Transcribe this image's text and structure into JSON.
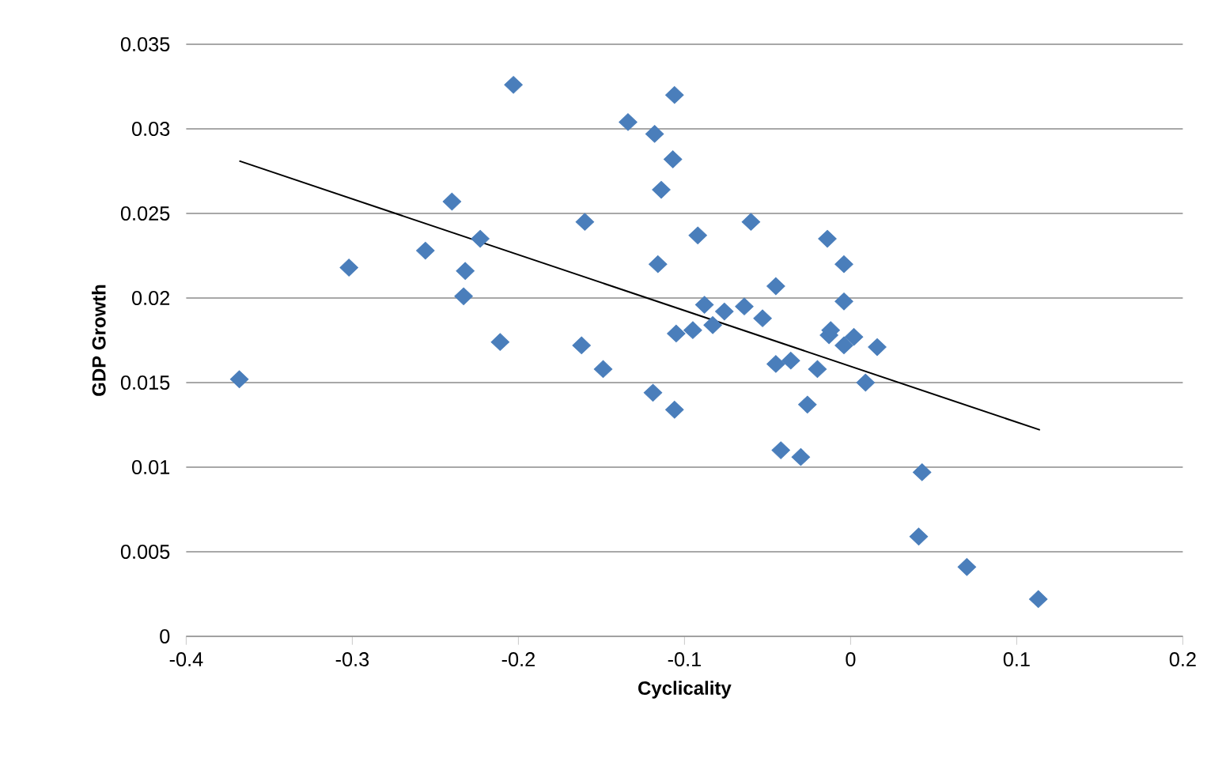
{
  "chart_data": {
    "type": "scatter",
    "xlabel": "Cyclicality",
    "ylabel": "GDP Growth",
    "xlim": [
      -0.4,
      0.2
    ],
    "ylim": [
      0,
      0.035
    ],
    "xticks": [
      -0.4,
      -0.3,
      -0.2,
      -0.1,
      0,
      0.1,
      0.2
    ],
    "yticks": [
      0,
      0.005,
      0.01,
      0.015,
      0.02,
      0.025,
      0.03,
      0.035
    ],
    "grid": "y",
    "series": [
      {
        "marker": "diamond",
        "color": "#4a7ebb",
        "x": [
          -0.368,
          -0.302,
          -0.256,
          -0.24,
          -0.232,
          -0.233,
          -0.223,
          -0.211,
          -0.203,
          -0.162,
          -0.16,
          -0.149,
          -0.134,
          -0.119,
          -0.118,
          -0.116,
          -0.114,
          -0.107,
          -0.106,
          -0.106,
          -0.105,
          -0.095,
          -0.092,
          -0.088,
          -0.083,
          -0.076,
          -0.064,
          -0.06,
          -0.053,
          -0.045,
          -0.045,
          -0.042,
          -0.036,
          -0.03,
          -0.026,
          -0.02,
          -0.014,
          -0.013,
          -0.012,
          -0.004,
          -0.004,
          -0.004,
          0.002,
          0.009,
          0.016,
          0.043,
          0.041,
          0.07,
          0.113
        ],
        "values": [
          0.0152,
          0.0218,
          0.0228,
          0.0257,
          0.0216,
          0.0201,
          0.0235,
          0.0174,
          0.0326,
          0.0172,
          0.0245,
          0.0158,
          0.0304,
          0.0144,
          0.0297,
          0.022,
          0.0264,
          0.0282,
          0.032,
          0.0134,
          0.0179,
          0.0181,
          0.0237,
          0.0196,
          0.0184,
          0.0192,
          0.0195,
          0.0245,
          0.0188,
          0.0207,
          0.0161,
          0.011,
          0.0163,
          0.0106,
          0.0137,
          0.0158,
          0.0235,
          0.0178,
          0.0181,
          0.022,
          0.0198,
          0.0172,
          0.0177,
          0.015,
          0.0171,
          0.0097,
          0.0059,
          0.0041,
          0.0022
        ]
      },
      {
        "type": "line",
        "marker": "none",
        "color": "#000000",
        "x": [
          -0.368,
          0.114
        ],
        "values": [
          0.0281,
          0.0122
        ]
      }
    ]
  }
}
